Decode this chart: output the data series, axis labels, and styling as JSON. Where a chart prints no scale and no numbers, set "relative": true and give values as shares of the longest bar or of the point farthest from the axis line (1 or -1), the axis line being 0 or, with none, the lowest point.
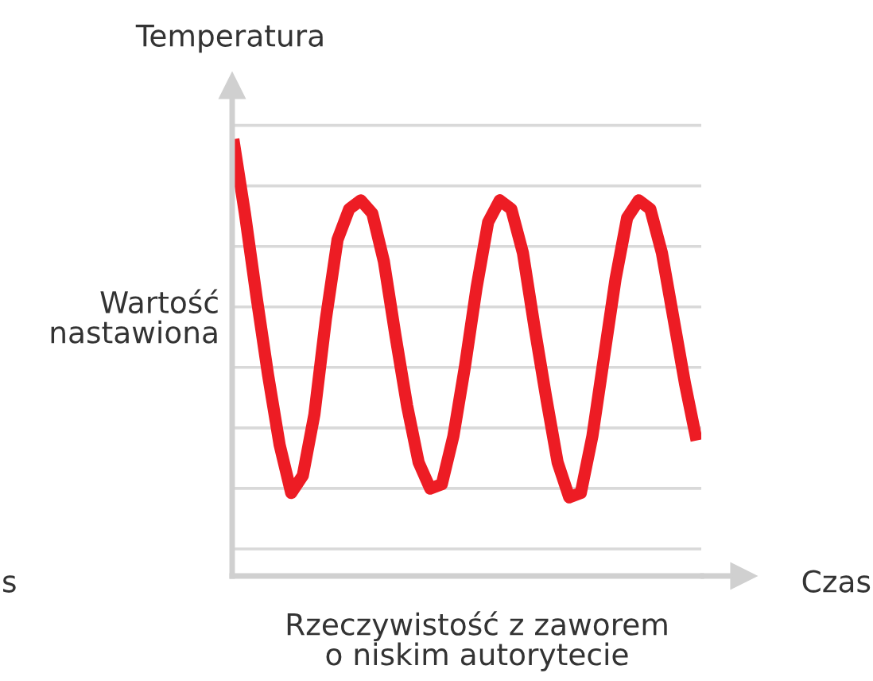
{
  "chart_data": {
    "type": "line",
    "relative": true,
    "title": "Rzeczywistość z zaworem\no niskim autorytecie",
    "xlabel": "Czas",
    "ylabel": "Temperatura",
    "annotations": [
      "Wartość\nnastawiona",
      "s"
    ],
    "grid": "y",
    "categories": [
      null,
      null,
      null,
      null,
      null,
      null,
      null,
      null,
      null,
      null,
      null,
      null,
      null,
      null,
      null,
      null,
      null,
      null,
      null,
      null,
      null,
      null,
      null,
      null,
      null,
      null,
      null,
      null,
      null,
      null,
      null,
      null,
      null,
      null,
      null,
      null,
      null,
      null,
      null,
      null,
      null
    ],
    "series": [
      {
        "color": "#ed1c24",
        "values": [
          1.0,
          0.83,
          0.64,
          0.46,
          0.3,
          0.19,
          0.23,
          0.37,
          0.59,
          0.77,
          0.84,
          0.86,
          0.83,
          0.72,
          0.55,
          0.39,
          0.26,
          0.2,
          0.21,
          0.32,
          0.48,
          0.66,
          0.81,
          0.86,
          0.84,
          0.74,
          0.57,
          0.41,
          0.26,
          0.18,
          0.19,
          0.32,
          0.5,
          0.68,
          0.82,
          0.86,
          0.84,
          0.74,
          0.59,
          0.44,
          0.31
        ]
      }
    ]
  }
}
